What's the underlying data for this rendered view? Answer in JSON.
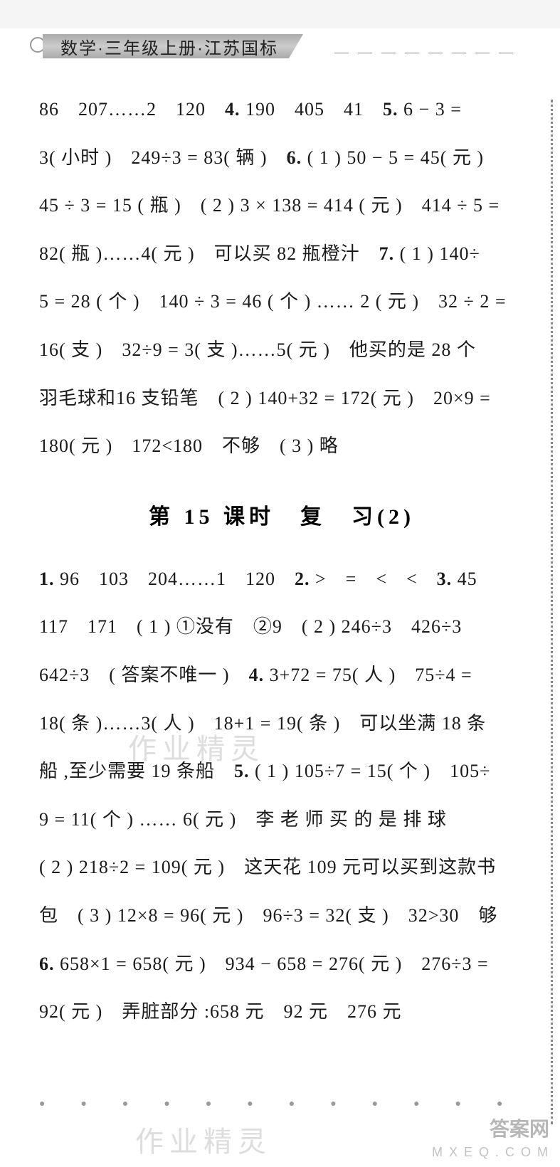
{
  "header": {
    "title": "数学·三年级上册·江苏国标",
    "dashes": "— — — — — — — —"
  },
  "block1": {
    "lines": [
      "86　207……2　120　<b>4.</b> 190　405　41　<b>5.</b> 6 − 3 =",
      "3( 小时 )　249÷3 = 83( 辆 )　<b>6.</b>  ( 1 ) 50 − 5 = 45( 元 )",
      "45 ÷ 3 = 15 ( 瓶 )　( 2 ) 3 × 138 = 414 ( 元 )　414 ÷ 5 =",
      "82( 瓶 )……4( 元 )　可以买 82 瓶橙汁　<b>7.</b> ( 1 ) 140÷",
      "5 = 28 ( 个 )　140 ÷ 3 = 46 ( 个 ) …… 2 ( 元 )　32 ÷ 2 =",
      "16( 支 )　32÷9 = 3( 支 )……5( 元 )　他买的是 28 个",
      "羽毛球和16 支铅笔　( 2 ) 140+32 = 172( 元 )　20×9 =",
      "180( 元 )　172&lt;180　不够　( 3 ) 略"
    ]
  },
  "section_title": "第 15 课时　复　习(2)",
  "block2": {
    "lines": [
      "<b>1.</b> 96　103　204……1　120　<b>2.</b> &gt;　=　&lt;　&lt;　<b>3.</b> 45",
      "117　171　( 1 ) ①没有　②9　( 2 ) 246÷3　426÷3",
      "642÷3　( 答案不唯一 )　<b>4.</b> 3+72 = 75( 人 )　75÷4 =",
      "18( 条 )……3( 人 )　18+1 = 19( 条 )　可以坐满 18 条",
      "船 ,至少需要 19 条船　<b>5.</b> ( 1 ) 105÷7 = 15( 个 )　105÷",
      "9 = 11( 个 ) …… 6( 元 )　李 老 师 买 的 是 排 球",
      " ( 2 ) 218÷2 = 109( 元 )　这天花 109 元可以买到这款书",
      "包　( 3 ) 12×8 = 96( 元 )　96÷3 = 32( 支 )　32&gt;30　够",
      "<b>6.</b> 658×1 = 658( 元 )　934 − 658 = 276( 元 )　276÷3 =",
      "92( 元 )　弄脏部分 :658 元　92 元　276 元"
    ]
  },
  "watermarks": {
    "wm1": "作业精灵",
    "wm2": "作业精灵",
    "corner": "答案网",
    "url": "M X E Q . C O M"
  },
  "dots": "●　●　●　●　●　●　●　●　●　●　●　●　●　●　●　●　●　●",
  "colors": {
    "page_bg": "#ffffff",
    "text": "#1a1a1a",
    "header_bar": "#bbbbbb",
    "watermark": "#dddddd",
    "border_dots": "#888888"
  }
}
